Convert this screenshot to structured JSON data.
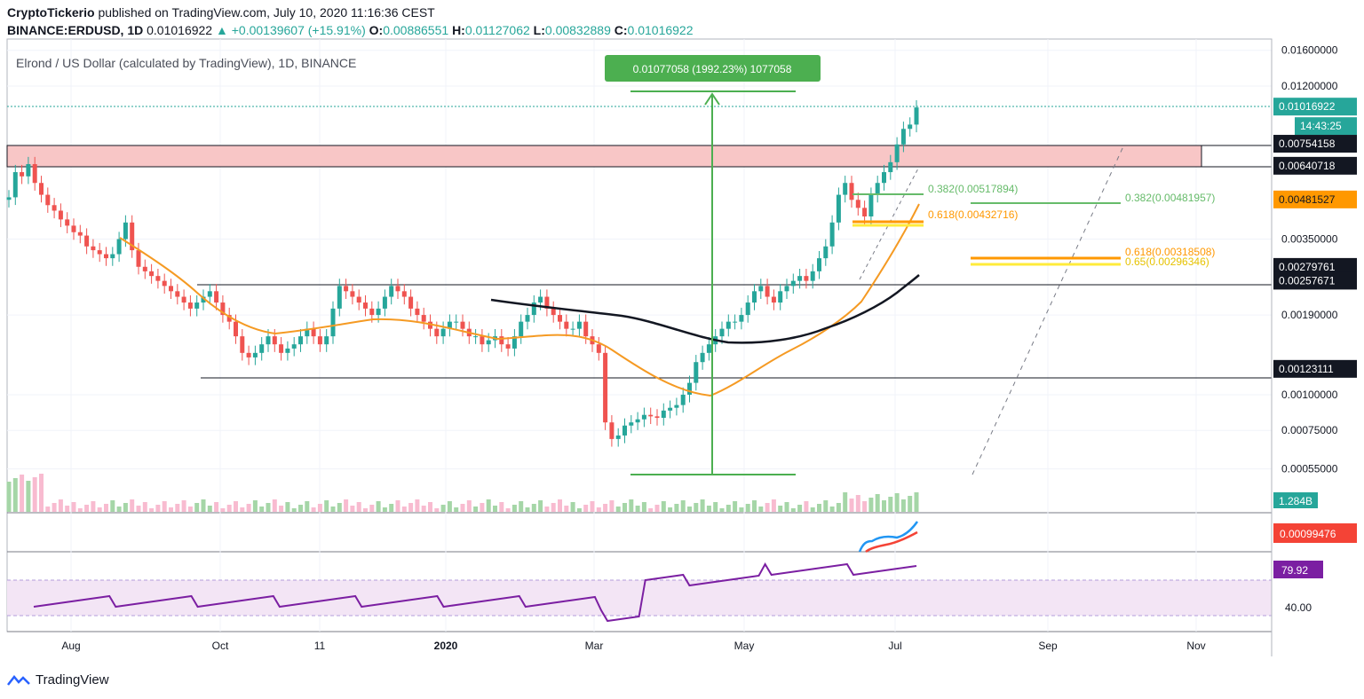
{
  "header": {
    "publisher": "CryptoTickerio",
    "published_text": "published on TradingView.com, July 10, 2020 11:16:36 CEST",
    "symbol": "BINANCE:ERDUSD, 1D",
    "last": "0.01016922",
    "change": "▲ +0.00139607 (+15.91%)",
    "o_label": "O:",
    "o": "0.00886551",
    "h_label": "H:",
    "h": "0.01127062",
    "l_label": "L:",
    "l": "0.00832889",
    "c_label": "C:",
    "c": "0.01016922"
  },
  "footer": {
    "brand": "TradingView"
  },
  "colors": {
    "bull": "#26a69a",
    "bear": "#ef5350",
    "ma_orange": "#f59a23",
    "ma_black": "#131722",
    "rsi": "#7b1fa2",
    "resistance_zone": "#f8c6c6",
    "fib_green": "#66bb6a",
    "fib_orange": "#ff9800",
    "fib_yellow": "#ffeb3b",
    "measure_green": "#4caf50"
  },
  "chart_data": {
    "type": "candlestick",
    "title": "Elrond / US Dollar (calculated by TradingView), 1D, BINANCE",
    "x_ticks": [
      "Aug",
      "Oct",
      "11",
      "2020",
      "Mar",
      "May",
      "Jul",
      "Sep",
      "Nov"
    ],
    "y_scale": "log",
    "y_ticks": [
      "0.01600000",
      "0.01200000",
      "0.00350000",
      "0.00190000",
      "0.00100000",
      "0.00075000",
      "0.00055000"
    ],
    "price_labels": [
      "0.01016922",
      "14:43:25",
      "0.00754158",
      "0.00640718",
      "0.00481527",
      "0.00279761",
      "0.00257671",
      "0.00123111"
    ],
    "price_label_values": [
      0.01016922,
      0,
      0.00754158,
      0.00640718,
      0.00481527,
      0.00279761,
      0.00257671,
      0.00123111
    ],
    "measure_label": "0.01077058 (1992.23%) 1077058",
    "fib_labels": {
      "a_382": "0.382(0.00517894)",
      "a_618": "0.618(0.00432716)",
      "b_382": "0.382(0.00481957)",
      "b_618": "0.618(0.00318508)",
      "b_65": "0.65(0.00296346)"
    },
    "fib_values": {
      "a_382": 0.00517894,
      "a_618": 0.00432716,
      "a_65": 0.0041,
      "b_382": 0.00481957,
      "b_618": 0.00318508,
      "b_65": 0.00296346
    },
    "volume_label": "1.284B",
    "indicator_label": "0.00099476",
    "rsi_label": "79.92",
    "rsi_tick": "40.00",
    "series_close": [
      0.0049,
      0.006,
      0.0058,
      0.0064,
      0.0055,
      0.005,
      0.0046,
      0.0044,
      0.0041,
      0.0039,
      0.0037,
      0.0036,
      0.0033,
      0.0032,
      0.0031,
      0.003,
      0.0031,
      0.0035,
      0.004,
      0.0032,
      0.0028,
      0.0027,
      0.0026,
      0.0025,
      0.0024,
      0.0023,
      0.0022,
      0.0021,
      0.002,
      0.0021,
      0.0022,
      0.0023,
      0.0021,
      0.0019,
      0.0018,
      0.0016,
      0.0014,
      0.00135,
      0.0014,
      0.0015,
      0.0016,
      0.0015,
      0.0014,
      0.00145,
      0.0015,
      0.0016,
      0.0017,
      0.0016,
      0.0015,
      0.0016,
      0.002,
      0.0024,
      0.0023,
      0.0022,
      0.0021,
      0.002,
      0.0019,
      0.002,
      0.0022,
      0.0024,
      0.0023,
      0.0022,
      0.002,
      0.0019,
      0.0018,
      0.0017,
      0.0016,
      0.0017,
      0.0018,
      0.0018,
      0.0017,
      0.0016,
      0.0016,
      0.0015,
      0.00155,
      0.0016,
      0.0015,
      0.00145,
      0.0016,
      0.0018,
      0.0019,
      0.0021,
      0.0022,
      0.002,
      0.0019,
      0.0018,
      0.0017,
      0.0017,
      0.0018,
      0.0016,
      0.0015,
      0.0014,
      0.0008,
      0.0007,
      0.00072,
      0.00078,
      0.0008,
      0.00082,
      0.00085,
      0.00084,
      0.00083,
      0.00088,
      0.0009,
      0.00092,
      0.001,
      0.0011,
      0.0013,
      0.0014,
      0.0015,
      0.0016,
      0.0017,
      0.0018,
      0.0018,
      0.0019,
      0.0021,
      0.0023,
      0.0024,
      0.0022,
      0.0021,
      0.0023,
      0.0024,
      0.0025,
      0.0026,
      0.0025,
      0.0027,
      0.003,
      0.0033,
      0.004,
      0.005,
      0.0055,
      0.0048,
      0.0045,
      0.0042,
      0.005,
      0.0055,
      0.006,
      0.0065,
      0.0075,
      0.0085,
      0.0088,
      0.0101
    ]
  }
}
